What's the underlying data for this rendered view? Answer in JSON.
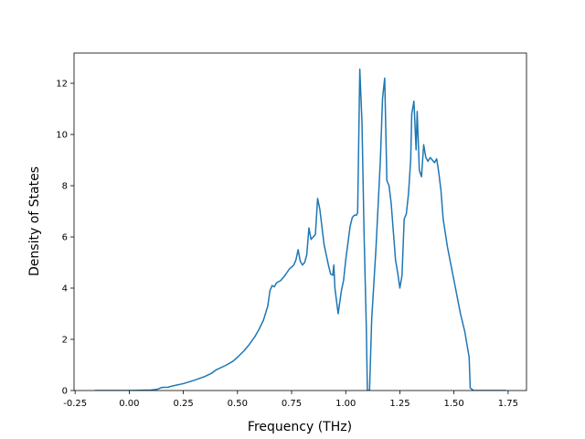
{
  "chart_data": {
    "type": "line",
    "xlabel": "Frequency (THz)",
    "ylabel": "Density of States",
    "xlim": [
      -0.255,
      1.835
    ],
    "ylim": [
      0,
      13.18
    ],
    "xticks": [
      {
        "value": -0.25,
        "label": "-0.25"
      },
      {
        "value": 0,
        "label": "0.00"
      },
      {
        "value": 0.25,
        "label": "0.25"
      },
      {
        "value": 0.5,
        "label": "0.50"
      },
      {
        "value": 0.75,
        "label": "0.75"
      },
      {
        "value": 1,
        "label": "1.00"
      },
      {
        "value": 1.25,
        "label": "1.25"
      },
      {
        "value": 1.5,
        "label": "1.50"
      },
      {
        "value": 1.75,
        "label": "1.75"
      }
    ],
    "yticks": [
      0,
      2,
      4,
      6,
      8,
      10,
      12
    ],
    "x": [
      -0.16,
      0.0,
      0.1,
      0.13,
      0.15,
      0.18,
      0.2,
      0.25,
      0.3,
      0.35,
      0.38,
      0.4,
      0.45,
      0.48,
      0.5,
      0.53,
      0.55,
      0.58,
      0.6,
      0.62,
      0.64,
      0.65,
      0.66,
      0.67,
      0.68,
      0.7,
      0.72,
      0.74,
      0.76,
      0.77,
      0.78,
      0.79,
      0.8,
      0.81,
      0.82,
      0.83,
      0.84,
      0.85,
      0.86,
      0.87,
      0.88,
      0.89,
      0.9,
      0.92,
      0.93,
      0.94,
      0.945,
      0.95,
      0.965,
      0.98,
      0.99,
      1.0,
      1.02,
      1.03,
      1.04,
      1.05,
      1.055,
      1.065,
      1.075,
      1.085,
      1.095,
      1.1,
      1.11,
      1.12,
      1.14,
      1.16,
      1.17,
      1.18,
      1.19,
      1.2,
      1.21,
      1.22,
      1.23,
      1.24,
      1.25,
      1.26,
      1.27,
      1.28,
      1.29,
      1.3,
      1.305,
      1.315,
      1.325,
      1.33,
      1.34,
      1.35,
      1.36,
      1.37,
      1.38,
      1.39,
      1.4,
      1.41,
      1.42,
      1.43,
      1.44,
      1.45,
      1.47,
      1.5,
      1.53,
      1.55,
      1.57,
      1.575,
      1.59,
      1.74
    ],
    "series": [
      {
        "name": "DOS",
        "color": "#1f77b4",
        "values": [
          0,
          0,
          0.02,
          0.05,
          0.12,
          0.13,
          0.18,
          0.27,
          0.4,
          0.55,
          0.67,
          0.8,
          1.0,
          1.15,
          1.3,
          1.55,
          1.75,
          2.1,
          2.4,
          2.75,
          3.3,
          3.9,
          4.1,
          4.05,
          4.2,
          4.3,
          4.5,
          4.75,
          4.9,
          5.1,
          5.5,
          5.05,
          4.9,
          5.0,
          5.3,
          6.35,
          5.9,
          6.0,
          6.1,
          7.5,
          7.1,
          6.4,
          5.7,
          4.9,
          4.55,
          4.5,
          4.9,
          4.0,
          3.0,
          3.9,
          4.3,
          5.1,
          6.4,
          6.75,
          6.85,
          6.85,
          6.95,
          12.55,
          10.5,
          6.0,
          2.5,
          0,
          0,
          2.8,
          5.6,
          9.0,
          11.4,
          12.2,
          8.2,
          8.0,
          7.3,
          6.2,
          5.1,
          4.6,
          4.0,
          4.5,
          6.7,
          6.9,
          7.7,
          9.0,
          10.8,
          11.3,
          9.4,
          10.9,
          8.6,
          8.35,
          9.6,
          9.1,
          8.95,
          9.1,
          9.0,
          8.9,
          9.05,
          8.5,
          7.8,
          6.7,
          5.6,
          4.3,
          3.0,
          2.3,
          1.3,
          0.1,
          0,
          0
        ]
      }
    ]
  }
}
